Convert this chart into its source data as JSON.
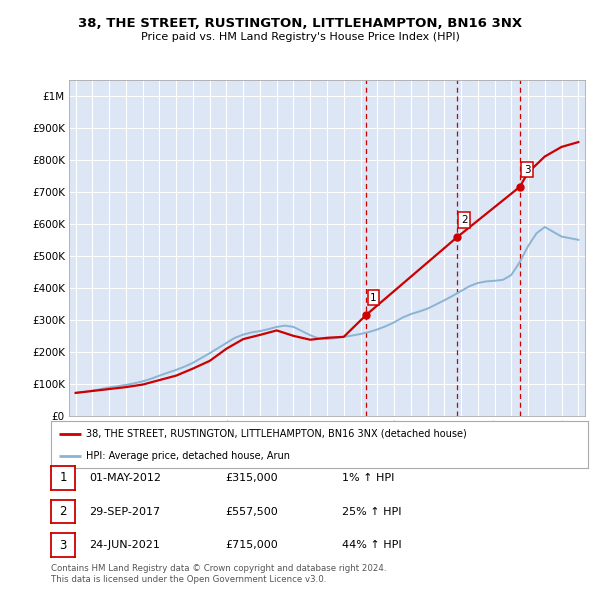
{
  "title": "38, THE STREET, RUSTINGTON, LITTLEHAMPTON, BN16 3NX",
  "subtitle": "Price paid vs. HM Land Registry's House Price Index (HPI)",
  "background_color": "#ffffff",
  "plot_bg_color": "#dce6f5",
  "grid_color": "#ffffff",
  "sale_info": [
    [
      "1",
      "01-MAY-2012",
      "£315,000",
      "1% ↑ HPI"
    ],
    [
      "2",
      "29-SEP-2017",
      "£557,500",
      "25% ↑ HPI"
    ],
    [
      "3",
      "24-JUN-2021",
      "£715,000",
      "44% ↑ HPI"
    ]
  ],
  "legend_line1": "38, THE STREET, RUSTINGTON, LITTLEHAMPTON, BN16 3NX (detached house)",
  "legend_line2": "HPI: Average price, detached house, Arun",
  "footer1": "Contains HM Land Registry data © Crown copyright and database right 2024.",
  "footer2": "This data is licensed under the Open Government Licence v3.0.",
  "red_line_color": "#cc0000",
  "blue_line_color": "#8ab4d4",
  "vline_color": "#cc0000",
  "ylim": [
    0,
    1050000
  ],
  "yticks": [
    0,
    100000,
    200000,
    300000,
    400000,
    500000,
    600000,
    700000,
    800000,
    900000,
    1000000
  ],
  "sale_year_floats": [
    2012.33,
    2017.75,
    2021.5
  ],
  "sale_prices": [
    315000,
    557500,
    715000
  ],
  "sale_labels": [
    "1",
    "2",
    "3"
  ],
  "hpi_x": [
    1995.0,
    1995.5,
    1996.0,
    1996.5,
    1997.0,
    1997.5,
    1998.0,
    1998.5,
    1999.0,
    1999.5,
    2000.0,
    2000.5,
    2001.0,
    2001.5,
    2002.0,
    2002.5,
    2003.0,
    2003.5,
    2004.0,
    2004.5,
    2005.0,
    2005.5,
    2006.0,
    2006.5,
    2007.0,
    2007.5,
    2008.0,
    2008.5,
    2009.0,
    2009.5,
    2010.0,
    2010.5,
    2011.0,
    2011.5,
    2012.0,
    2012.5,
    2013.0,
    2013.5,
    2014.0,
    2014.5,
    2015.0,
    2015.5,
    2016.0,
    2016.5,
    2017.0,
    2017.5,
    2018.0,
    2018.5,
    2019.0,
    2019.5,
    2020.0,
    2020.5,
    2021.0,
    2021.5,
    2022.0,
    2022.5,
    2023.0,
    2023.5,
    2024.0,
    2024.5,
    2025.0
  ],
  "hpi_y": [
    72000,
    75000,
    79000,
    84000,
    89000,
    93000,
    97000,
    102000,
    108000,
    116000,
    126000,
    135000,
    144000,
    154000,
    166000,
    181000,
    196000,
    212000,
    228000,
    244000,
    254000,
    261000,
    265000,
    271000,
    278000,
    282000,
    278000,
    265000,
    252000,
    242000,
    240000,
    243000,
    247000,
    251000,
    256000,
    262000,
    270000,
    280000,
    292000,
    307000,
    318000,
    326000,
    335000,
    348000,
    361000,
    375000,
    390000,
    405000,
    415000,
    420000,
    422000,
    425000,
    440000,
    480000,
    530000,
    570000,
    590000,
    575000,
    560000,
    555000,
    550000
  ],
  "prop_x": [
    1995.0,
    1996.0,
    1997.0,
    1998.0,
    1999.0,
    2000.0,
    2001.0,
    2002.0,
    2003.0,
    2004.0,
    2005.0,
    2006.0,
    2007.0,
    2008.0,
    2009.0,
    2010.0,
    2011.0,
    2012.33,
    2017.75,
    2021.5,
    2022.0,
    2023.0,
    2024.0,
    2025.0
  ],
  "prop_y": [
    72000,
    78000,
    84000,
    90000,
    98000,
    112000,
    126000,
    148000,
    172000,
    210000,
    240000,
    253000,
    267000,
    250000,
    238000,
    244000,
    247000,
    315000,
    557500,
    715000,
    760000,
    810000,
    840000,
    855000
  ]
}
